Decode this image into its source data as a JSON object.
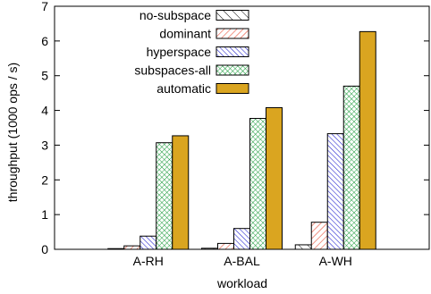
{
  "chart_data": {
    "type": "bar",
    "xlabel": "workload",
    "ylabel": "throughput (1000 ops / s)",
    "ylim": [
      0,
      7
    ],
    "yticks": [
      0,
      1,
      2,
      3,
      4,
      5,
      6,
      7
    ],
    "categories": [
      "A-RH",
      "A-BAL",
      "A-WH"
    ],
    "legend_position": "top-left",
    "series": [
      {
        "name": "no-subspace",
        "pattern": "hatch-sparse",
        "color": "#000000",
        "values": [
          0.02,
          0.03,
          0.13
        ]
      },
      {
        "name": "dominant",
        "pattern": "hatch-red",
        "color": "#e8503a",
        "values": [
          0.1,
          0.17,
          0.78
        ]
      },
      {
        "name": "hyperspace",
        "pattern": "hatch-dense",
        "color": "#2a2ad0",
        "values": [
          0.38,
          0.6,
          3.33
        ]
      },
      {
        "name": "subspaces-all",
        "pattern": "crosshatch",
        "color": "#1a9a3a",
        "values": [
          3.07,
          3.77,
          4.7
        ]
      },
      {
        "name": "automatic",
        "pattern": "solid",
        "color": "#daa520",
        "values": [
          3.27,
          4.08,
          6.27
        ]
      }
    ]
  }
}
